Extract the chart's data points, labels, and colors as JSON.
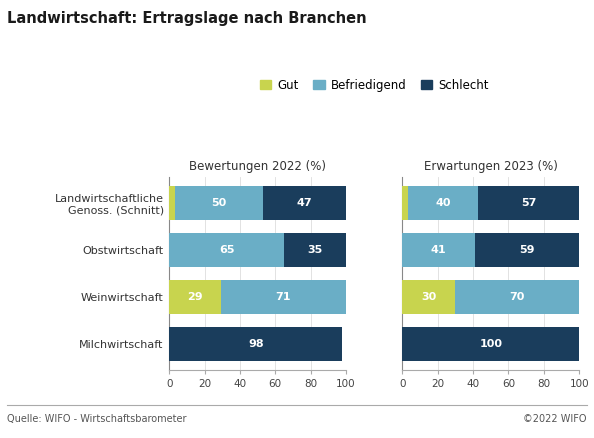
{
  "title": "Landwirtschaft: Ertragslage nach Branchen",
  "legend_labels": [
    "Gut",
    "Befriedigend",
    "Schlecht"
  ],
  "colors": {
    "gut": "#c8d44e",
    "befriedigend": "#6aaec6",
    "schlecht": "#1a3d5c"
  },
  "categories": [
    "Landwirtschaftliche\nGenoss. (Schnitt)",
    "Obstwirtschaft",
    "Weinwirtschaft",
    "Milchwirtschaft"
  ],
  "bewertungen_2022": {
    "gut": [
      3,
      0,
      29,
      0
    ],
    "befriedigend": [
      50,
      65,
      71,
      0
    ],
    "schlecht": [
      47,
      35,
      0,
      98
    ]
  },
  "erwartungen_2023": {
    "gut": [
      3,
      0,
      30,
      0
    ],
    "befriedigend": [
      40,
      41,
      70,
      0
    ],
    "schlecht": [
      57,
      59,
      0,
      100
    ]
  },
  "bewertungen_labels": {
    "gut": [
      null,
      null,
      29,
      null
    ],
    "befriedigend": [
      50,
      65,
      71,
      null
    ],
    "schlecht": [
      47,
      35,
      null,
      98
    ]
  },
  "erwartungen_labels": {
    "gut": [
      null,
      null,
      30,
      null
    ],
    "befriedigend": [
      40,
      41,
      70,
      null
    ],
    "schlecht": [
      57,
      59,
      null,
      100
    ]
  },
  "subtitle_left": "Bewertungen 2022 (%)",
  "subtitle_right": "Erwartungen 2023 (%)",
  "source": "Quelle: WIFO - Wirtschaftsbarometer",
  "copyright": "©2022 WIFO",
  "xlim": [
    0,
    100
  ],
  "xticks": [
    0,
    20,
    40,
    60,
    80,
    100
  ],
  "background_color": "#ffffff",
  "bar_height": 0.72
}
